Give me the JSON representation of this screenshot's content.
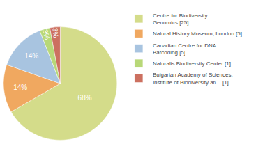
{
  "chart_data": {
    "type": "pie",
    "categories": [
      "Centre for Biodiversity\nGenomics [25]",
      "Natural History Museum, London [5]",
      "Canadian Centre for DNA\nBarcoding [5]",
      "Naturalis Biodiversity Center [1]",
      "Bulgarian Academy of Sciences,\nInstitute of Biodiversity an... [1]"
    ],
    "values": [
      68,
      14,
      14,
      3,
      3
    ],
    "value_labels": [
      "68%",
      "14%",
      "14%",
      "3%",
      "3%"
    ],
    "colors": [
      "#d4dc8a",
      "#f0a860",
      "#a8c4e0",
      "#b8d878",
      "#cc7060"
    ],
    "data_labels": true,
    "legend": "right"
  }
}
